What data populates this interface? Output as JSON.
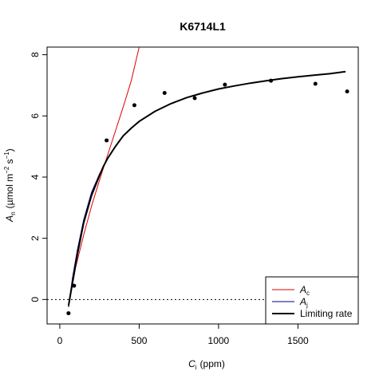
{
  "chart_data": {
    "type": "line",
    "title": "K6714L1",
    "xlabel": {
      "main": "C",
      "sub": "i",
      "unit": "(ppm)"
    },
    "ylabel": {
      "main": "A",
      "sub": "n",
      "unit_prefix": "(µmol m",
      "sup1": "−2",
      "mid": " s",
      "sup2": "−1",
      "unit_suffix": ")"
    },
    "xlim": [
      -80,
      1880
    ],
    "ylim": [
      -0.8,
      8.25
    ],
    "x_ticks": [
      0,
      500,
      1000,
      1500
    ],
    "y_ticks": [
      0,
      2,
      4,
      6,
      8
    ],
    "zero_line": {
      "y": 0,
      "style": "dotted"
    },
    "observed_points": [
      {
        "x": 55,
        "y": -0.45
      },
      {
        "x": 90,
        "y": 0.45
      },
      {
        "x": 295,
        "y": 5.2
      },
      {
        "x": 470,
        "y": 6.35
      },
      {
        "x": 660,
        "y": 6.75
      },
      {
        "x": 850,
        "y": 6.58
      },
      {
        "x": 1040,
        "y": 7.02
      },
      {
        "x": 1330,
        "y": 7.15
      },
      {
        "x": 1610,
        "y": 7.05
      },
      {
        "x": 1810,
        "y": 6.8
      }
    ],
    "series": [
      {
        "name": "A_c",
        "color": "#dd0000",
        "x": [
          55,
          100,
          150,
          200,
          250,
          300,
          350,
          400,
          450,
          500
        ],
        "y": [
          -0.25,
          1.05,
          2.1,
          3.05,
          3.9,
          4.7,
          5.5,
          6.3,
          7.15,
          8.25
        ]
      },
      {
        "name": "A_j",
        "color": "#00008b",
        "x": [
          55,
          80,
          110,
          150,
          200,
          250,
          275
        ],
        "y": [
          -0.25,
          0.7,
          1.6,
          2.6,
          3.5,
          4.1,
          4.35
        ]
      },
      {
        "name": "Limiting rate",
        "color": "#000000",
        "x": [
          55,
          80,
          110,
          150,
          200,
          250,
          275,
          300,
          350,
          400,
          450,
          500,
          600,
          700,
          800,
          900,
          1000,
          1100,
          1200,
          1300,
          1400,
          1500,
          1600,
          1700,
          1800
        ],
        "y": [
          -0.2,
          0.55,
          1.45,
          2.5,
          3.4,
          4.05,
          4.35,
          4.6,
          5.0,
          5.35,
          5.6,
          5.82,
          6.15,
          6.4,
          6.6,
          6.75,
          6.88,
          6.98,
          7.07,
          7.15,
          7.22,
          7.28,
          7.33,
          7.38,
          7.45
        ]
      }
    ],
    "legend": {
      "placement": "bottom-right",
      "entries": [
        {
          "main": "A",
          "sub": "c",
          "color": "#dd0000",
          "width": 1
        },
        {
          "main": "A",
          "sub": "j",
          "color": "#00008b",
          "width": 1
        },
        {
          "label": "Limiting rate",
          "color": "#000000",
          "width": 2
        }
      ]
    }
  }
}
